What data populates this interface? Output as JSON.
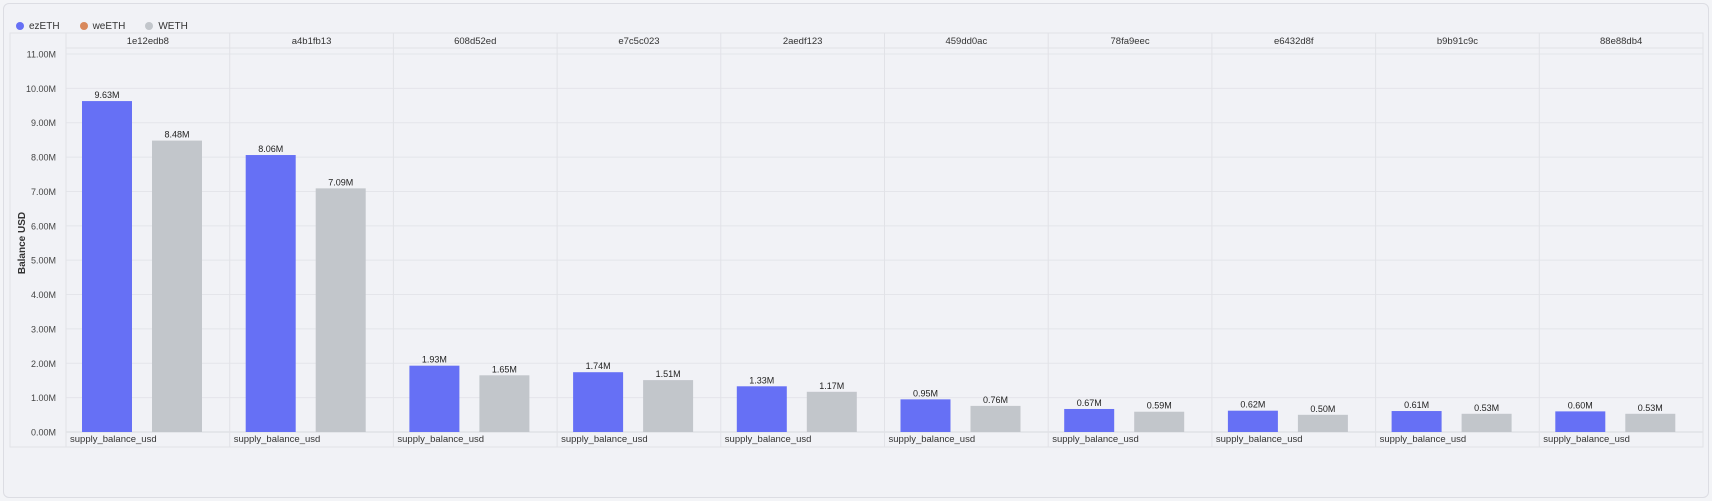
{
  "legend": [
    {
      "label": "ezETH",
      "color": "#6670f5"
    },
    {
      "label": "weETH",
      "color": "#d9895c"
    },
    {
      "label": "WETH",
      "color": "#c2c6cb"
    }
  ],
  "chart_data": {
    "type": "bar",
    "ylabel": "Balance USD",
    "ylim": [
      0,
      11000000
    ],
    "y_ticks": [
      "0.00M",
      "1.00M",
      "2.00M",
      "3.00M",
      "4.00M",
      "5.00M",
      "6.00M",
      "7.00M",
      "8.00M",
      "9.00M",
      "10.00M",
      "11.00M"
    ],
    "facet_category": "supply_balance_usd",
    "grid": true,
    "legend_position": "top-left",
    "facets": [
      {
        "name": "1e12edb8",
        "values": {
          "ezETH": 9630000,
          "WETH": 8480000
        },
        "labels": {
          "ezETH": "9.63M",
          "WETH": "8.48M"
        }
      },
      {
        "name": "a4b1fb13",
        "values": {
          "ezETH": 8060000,
          "WETH": 7090000
        },
        "labels": {
          "ezETH": "8.06M",
          "WETH": "7.09M"
        }
      },
      {
        "name": "608d52ed",
        "values": {
          "ezETH": 1930000,
          "WETH": 1650000
        },
        "labels": {
          "ezETH": "1.93M",
          "WETH": "1.65M"
        }
      },
      {
        "name": "e7c5c023",
        "values": {
          "ezETH": 1740000,
          "WETH": 1510000
        },
        "labels": {
          "ezETH": "1.74M",
          "WETH": "1.51M"
        }
      },
      {
        "name": "2aedf123",
        "values": {
          "ezETH": 1330000,
          "WETH": 1170000
        },
        "labels": {
          "ezETH": "1.33M",
          "WETH": "1.17M"
        }
      },
      {
        "name": "459dd0ac",
        "values": {
          "ezETH": 950000,
          "WETH": 760000
        },
        "labels": {
          "ezETH": "0.95M",
          "WETH": "0.76M"
        }
      },
      {
        "name": "78fa9eec",
        "values": {
          "ezETH": 670000,
          "WETH": 590000
        },
        "labels": {
          "ezETH": "0.67M",
          "WETH": "0.59M"
        }
      },
      {
        "name": "e6432d8f",
        "values": {
          "ezETH": 620000,
          "WETH": 500000
        },
        "labels": {
          "ezETH": "0.62M",
          "WETH": "0.50M"
        }
      },
      {
        "name": "b9b91c9c",
        "values": {
          "ezETH": 610000,
          "WETH": 530000
        },
        "labels": {
          "ezETH": "0.61M",
          "WETH": "0.53M"
        }
      },
      {
        "name": "88e88db4",
        "values": {
          "ezETH": 600000,
          "WETH": 530000
        },
        "labels": {
          "ezETH": "0.60M",
          "WETH": "0.53M"
        }
      }
    ]
  }
}
